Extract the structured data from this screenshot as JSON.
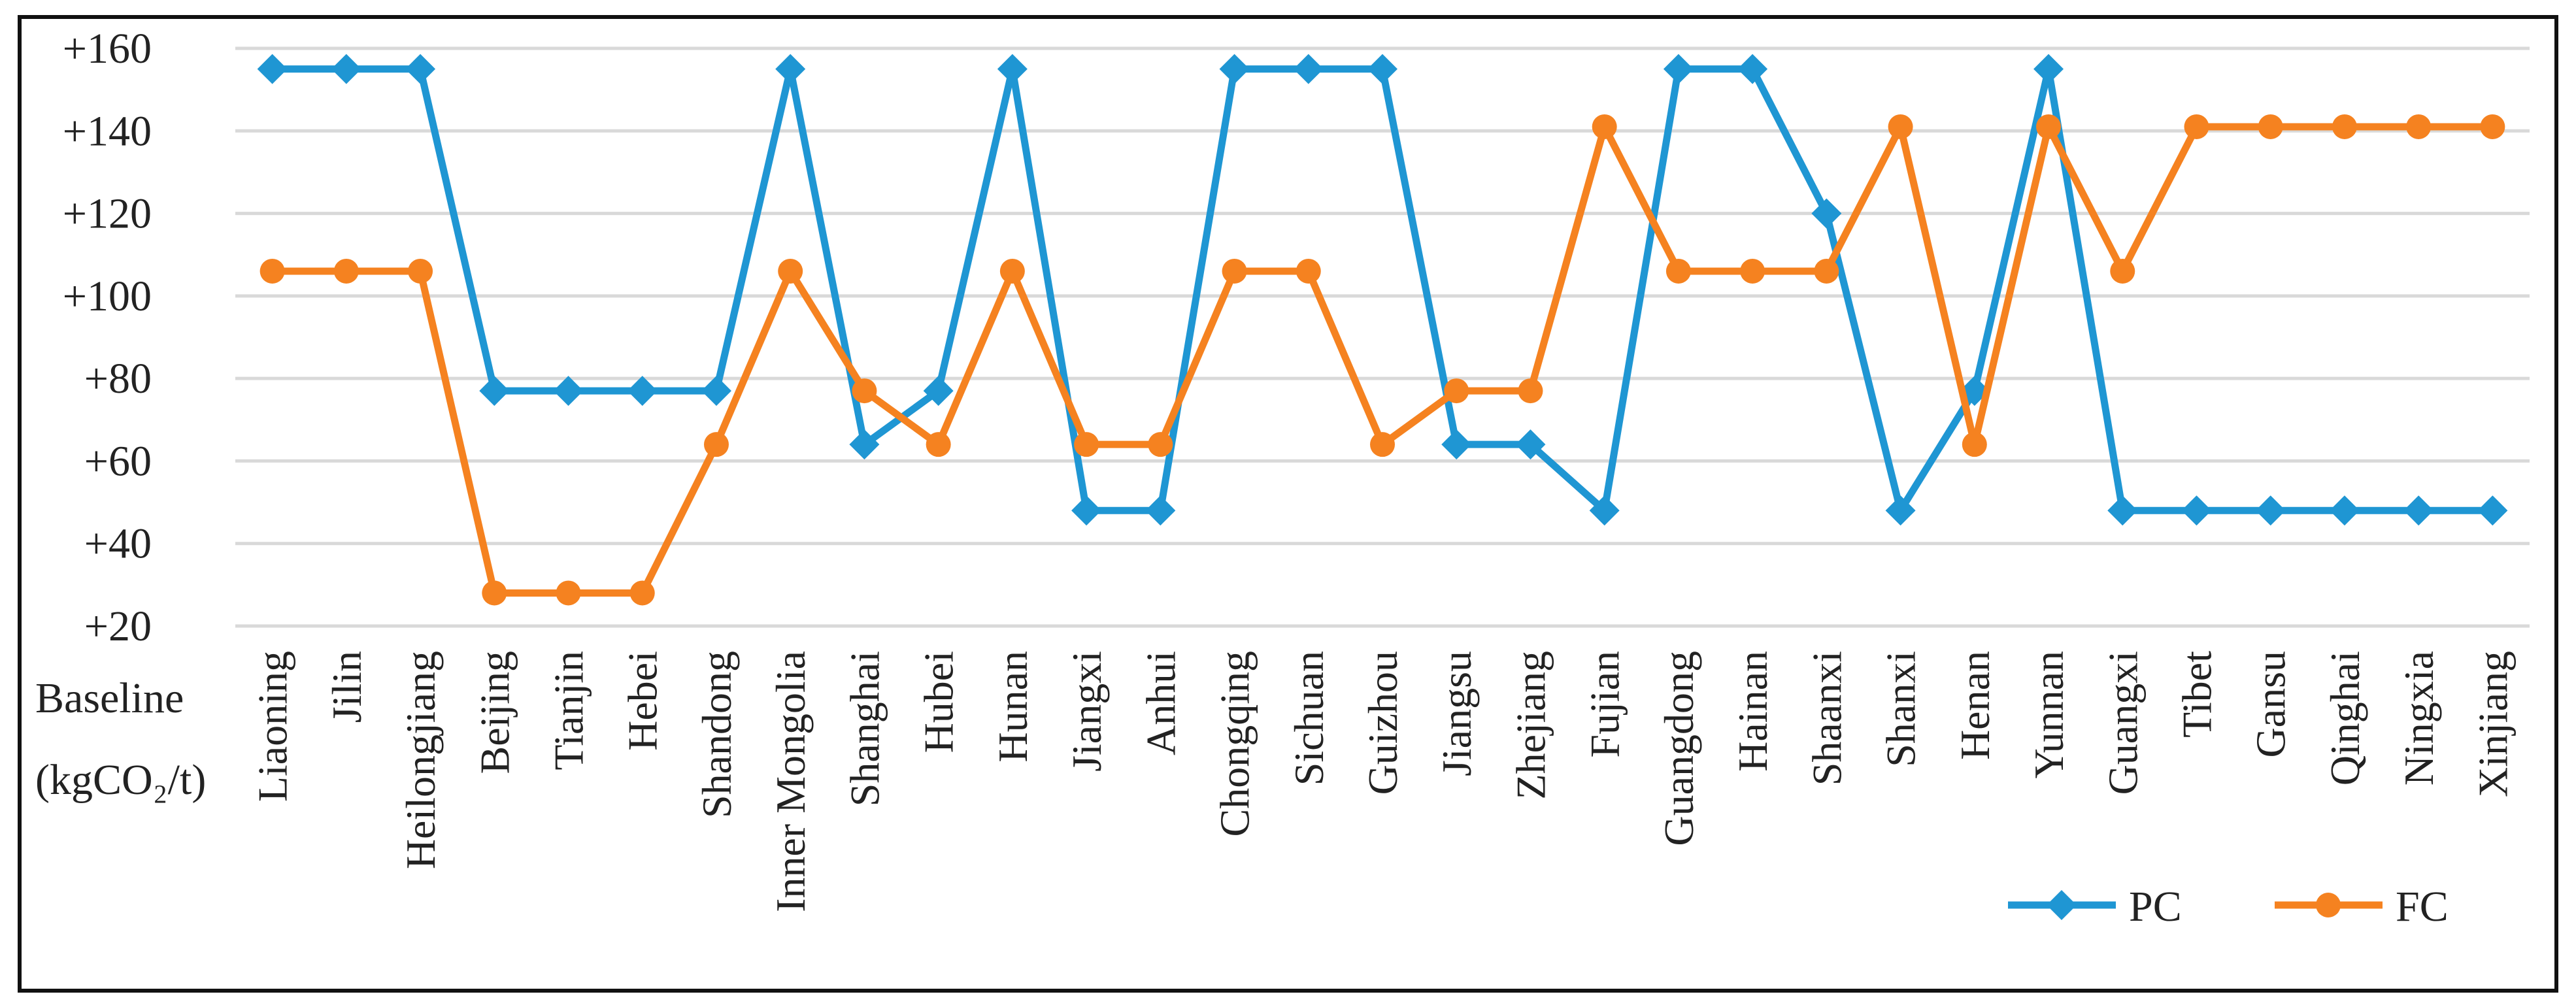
{
  "chart_data": {
    "type": "line",
    "ylabel_lines": [
      "Baseline",
      "(kgCO₂/t)"
    ],
    "y_ticks": [
      "+20",
      "+40",
      "+60",
      "+80",
      "+100",
      "+120",
      "+140",
      "+160"
    ],
    "ylim": [
      20,
      160
    ],
    "grid": true,
    "legend_position": "bottom-right",
    "categories": [
      "Liaoning",
      "Jilin",
      "Heilongjiang",
      "Beijing",
      "Tianjin",
      "Hebei",
      "Shandong",
      "Inner Mongolia",
      "Shanghai",
      "Hubei",
      "Hunan",
      "Jiangxi",
      "Anhui",
      "Chongqing",
      "Sichuan",
      "Guizhou",
      "Jiangsu",
      "Zhejiang",
      "Fujian",
      "Guangdong",
      "Hainan",
      "Shaanxi",
      "Shanxi",
      "Henan",
      "Yunnan",
      "Guangxi",
      "Tibet",
      "Gansu",
      "Qinghai",
      "Ningxia",
      "Xinjiang"
    ],
    "series": [
      {
        "name": "PC",
        "color": "#1f96d3",
        "marker": "diamond",
        "values": [
          155,
          155,
          155,
          77,
          77,
          77,
          77,
          155,
          64,
          77,
          155,
          48,
          48,
          155,
          155,
          155,
          64,
          64,
          48,
          155,
          155,
          120,
          48,
          77,
          155,
          48,
          48,
          48,
          48,
          48,
          48
        ]
      },
      {
        "name": "FC",
        "color": "#f58220",
        "marker": "circle",
        "values": [
          106,
          106,
          106,
          28,
          28,
          28,
          64,
          106,
          77,
          64,
          106,
          64,
          64,
          106,
          106,
          64,
          77,
          77,
          141,
          106,
          106,
          106,
          141,
          64,
          141,
          106,
          141,
          141,
          141,
          141,
          141
        ]
      }
    ]
  }
}
